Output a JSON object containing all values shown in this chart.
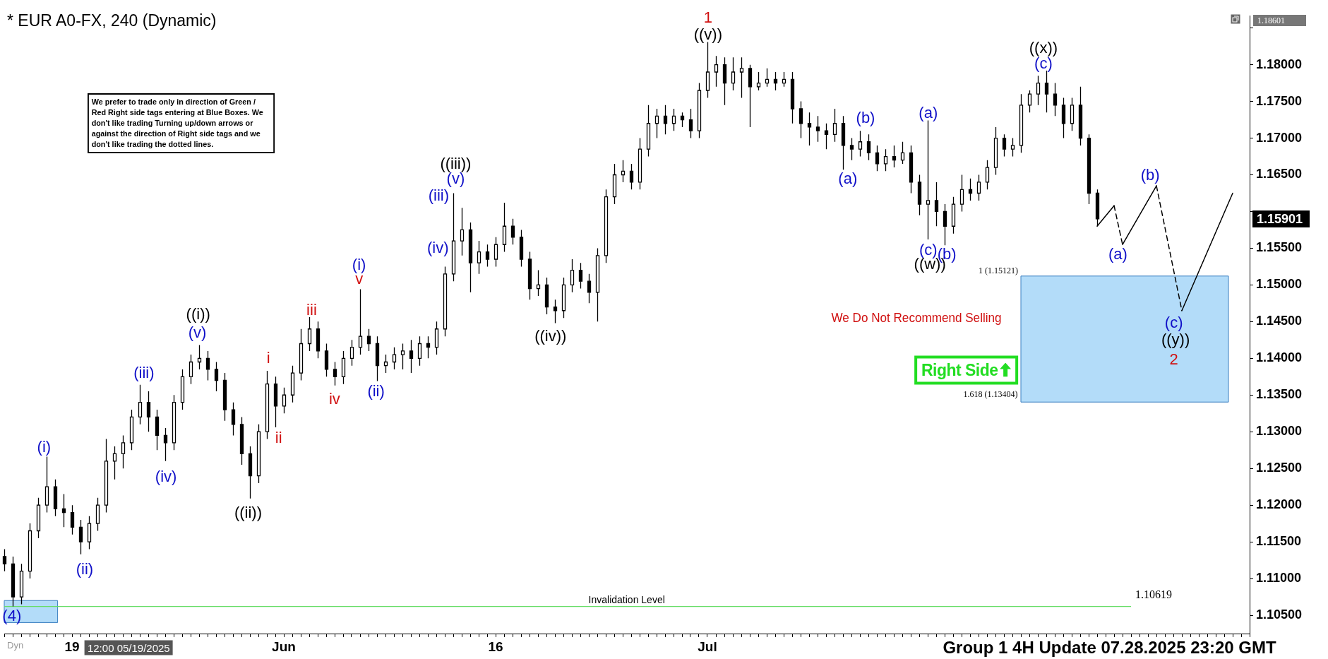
{
  "chart_data": {
    "type": "candlestick",
    "title": "* EUR A0-FX, 240 (Dynamic)",
    "color": "#000000",
    "categories": [
      null,
      null,
      null,
      null,
      null,
      null,
      null,
      null,
      "19",
      null,
      null,
      null,
      null,
      null,
      null,
      null,
      null,
      null,
      null,
      null,
      null,
      null,
      null,
      null,
      null,
      null,
      null,
      null,
      null,
      null,
      null,
      null,
      null,
      "Jun",
      null,
      null,
      null,
      null,
      null,
      null,
      null,
      null,
      null,
      null,
      null,
      null,
      null,
      null,
      null,
      null,
      null,
      null,
      null,
      null,
      null,
      null,
      null,
      null,
      "16",
      null,
      null,
      null,
      null,
      null,
      null,
      null,
      null,
      null,
      null,
      null,
      null,
      null,
      null,
      null,
      null,
      null,
      null,
      null,
      null,
      null,
      null,
      null,
      null,
      "Jul",
      null,
      null,
      null,
      null,
      null,
      null,
      null,
      null,
      null,
      null,
      null,
      null,
      null,
      null,
      null,
      null,
      null,
      null,
      null,
      null,
      null,
      null,
      null,
      null,
      null,
      null,
      null,
      null,
      null,
      null,
      null,
      null,
      null,
      null,
      null,
      null,
      null,
      null,
      null,
      null,
      null,
      null,
      null,
      null,
      null,
      null,
      null,
      null,
      null,
      null,
      null,
      null,
      null,
      null,
      null,
      null,
      null,
      null,
      null,
      null,
      null,
      null,
      null,
      null
    ],
    "ohlc": [
      [
        1.113,
        1.114,
        1.111,
        1.112
      ],
      [
        1.112,
        1.113,
        1.1062,
        1.1075
      ],
      [
        1.1075,
        1.112,
        1.1065,
        1.111
      ],
      [
        1.111,
        1.1175,
        1.11,
        1.1165
      ],
      [
        1.1165,
        1.121,
        1.1155,
        1.12
      ],
      [
        1.12,
        1.1266,
        1.119,
        1.1225
      ],
      [
        1.1225,
        1.1235,
        1.1185,
        1.1195
      ],
      [
        1.1195,
        1.1215,
        1.117,
        1.119
      ],
      [
        1.119,
        1.12,
        1.116,
        1.117
      ],
      [
        1.117,
        1.118,
        1.1133,
        1.115
      ],
      [
        1.115,
        1.1185,
        1.114,
        1.1175
      ],
      [
        1.1175,
        1.121,
        1.1165,
        1.12
      ],
      [
        1.12,
        1.129,
        1.119,
        1.126
      ],
      [
        1.126,
        1.128,
        1.1235,
        1.127
      ],
      [
        1.127,
        1.1295,
        1.125,
        1.1285
      ],
      [
        1.1285,
        1.133,
        1.1275,
        1.132
      ],
      [
        1.132,
        1.1364,
        1.131,
        1.134
      ],
      [
        1.134,
        1.1355,
        1.13,
        1.132
      ],
      [
        1.132,
        1.133,
        1.1275,
        1.1295
      ],
      [
        1.1295,
        1.1305,
        1.126,
        1.1285
      ],
      [
        1.1285,
        1.135,
        1.1275,
        1.134
      ],
      [
        1.134,
        1.1385,
        1.133,
        1.1375
      ],
      [
        1.1375,
        1.1405,
        1.1365,
        1.1395
      ],
      [
        1.1395,
        1.1418,
        1.1385,
        1.14
      ],
      [
        1.14,
        1.141,
        1.137,
        1.1385
      ],
      [
        1.1385,
        1.1395,
        1.1355,
        1.137
      ],
      [
        1.137,
        1.138,
        1.1315,
        1.133
      ],
      [
        1.133,
        1.134,
        1.1295,
        1.131
      ],
      [
        1.131,
        1.132,
        1.1255,
        1.127
      ],
      [
        1.127,
        1.128,
        1.1209,
        1.124
      ],
      [
        1.124,
        1.131,
        1.123,
        1.13
      ],
      [
        1.13,
        1.1383,
        1.129,
        1.1365
      ],
      [
        1.1365,
        1.1375,
        1.1306,
        1.1335
      ],
      [
        1.1335,
        1.136,
        1.1325,
        1.135
      ],
      [
        1.135,
        1.139,
        1.134,
        1.138
      ],
      [
        1.138,
        1.144,
        1.137,
        1.142
      ],
      [
        1.142,
        1.1456,
        1.141,
        1.144
      ],
      [
        1.144,
        1.145,
        1.14,
        1.141
      ],
      [
        1.141,
        1.142,
        1.1375,
        1.1385
      ],
      [
        1.1385,
        1.1395,
        1.1363,
        1.1375
      ],
      [
        1.1375,
        1.141,
        1.1365,
        1.14
      ],
      [
        1.14,
        1.1425,
        1.139,
        1.1415
      ],
      [
        1.1415,
        1.1494,
        1.1405,
        1.143
      ],
      [
        1.143,
        1.144,
        1.141,
        1.142
      ],
      [
        1.142,
        1.143,
        1.1369,
        1.139
      ],
      [
        1.139,
        1.1405,
        1.138,
        1.1395
      ],
      [
        1.1395,
        1.1415,
        1.1385,
        1.1405
      ],
      [
        1.1405,
        1.142,
        1.1385,
        1.141
      ],
      [
        1.141,
        1.1425,
        1.138,
        1.14
      ],
      [
        1.14,
        1.143,
        1.139,
        1.142
      ],
      [
        1.142,
        1.143,
        1.14,
        1.1415
      ],
      [
        1.1415,
        1.145,
        1.1405,
        1.144
      ],
      [
        1.144,
        1.1525,
        1.143,
        1.1515
      ],
      [
        1.1515,
        1.1625,
        1.1505,
        1.156
      ],
      [
        1.156,
        1.1605,
        1.154,
        1.1575
      ],
      [
        1.1575,
        1.1585,
        1.149,
        1.153
      ],
      [
        1.153,
        1.156,
        1.1515,
        1.1545
      ],
      [
        1.1545,
        1.1555,
        1.1525,
        1.1535
      ],
      [
        1.1535,
        1.1565,
        1.1525,
        1.1555
      ],
      [
        1.1555,
        1.1612,
        1.1545,
        1.158
      ],
      [
        1.158,
        1.159,
        1.1555,
        1.1565
      ],
      [
        1.1565,
        1.1575,
        1.1525,
        1.1535
      ],
      [
        1.1535,
        1.1545,
        1.148,
        1.1495
      ],
      [
        1.1495,
        1.152,
        1.1485,
        1.15
      ],
      [
        1.15,
        1.151,
        1.146,
        1.147
      ],
      [
        1.147,
        1.148,
        1.1448,
        1.1465
      ],
      [
        1.1465,
        1.151,
        1.1455,
        1.15
      ],
      [
        1.15,
        1.1535,
        1.149,
        1.152
      ],
      [
        1.152,
        1.153,
        1.1495,
        1.1505
      ],
      [
        1.1505,
        1.1515,
        1.1475,
        1.149
      ],
      [
        1.149,
        1.155,
        1.145,
        1.154
      ],
      [
        1.154,
        1.163,
        1.153,
        1.162
      ],
      [
        1.162,
        1.1665,
        1.161,
        1.165
      ],
      [
        1.165,
        1.167,
        1.164,
        1.1655
      ],
      [
        1.1655,
        1.1665,
        1.163,
        1.164
      ],
      [
        1.164,
        1.17,
        1.163,
        1.1685
      ],
      [
        1.1685,
        1.1745,
        1.1675,
        1.172
      ],
      [
        1.172,
        1.174,
        1.17,
        1.173
      ],
      [
        1.173,
        1.1745,
        1.1705,
        1.172
      ],
      [
        1.172,
        1.174,
        1.171,
        1.173
      ],
      [
        1.173,
        1.1735,
        1.1715,
        1.1725
      ],
      [
        1.1725,
        1.174,
        1.17,
        1.171
      ],
      [
        1.171,
        1.1775,
        1.17,
        1.1765
      ],
      [
        1.1765,
        1.1831,
        1.1755,
        1.179
      ],
      [
        1.179,
        1.1812,
        1.177,
        1.18
      ],
      [
        1.18,
        1.181,
        1.1745,
        1.1775
      ],
      [
        1.1775,
        1.181,
        1.1765,
        1.179
      ],
      [
        1.179,
        1.181,
        1.1755,
        1.1795
      ],
      [
        1.1795,
        1.18,
        1.1715,
        1.177
      ],
      [
        1.177,
        1.179,
        1.1765,
        1.1775
      ],
      [
        1.1775,
        1.1795,
        1.177,
        1.178
      ],
      [
        1.178,
        1.179,
        1.1765,
        1.1775
      ],
      [
        1.1775,
        1.179,
        1.177,
        1.178
      ],
      [
        1.178,
        1.179,
        1.172,
        1.174
      ],
      [
        1.174,
        1.175,
        1.17,
        1.172
      ],
      [
        1.172,
        1.1735,
        1.169,
        1.1715
      ],
      [
        1.1715,
        1.173,
        1.1695,
        1.171
      ],
      [
        1.171,
        1.172,
        1.1685,
        1.1705
      ],
      [
        1.1705,
        1.174,
        1.1695,
        1.172
      ],
      [
        1.172,
        1.173,
        1.1657,
        1.169
      ],
      [
        1.169,
        1.17,
        1.167,
        1.1685
      ],
      [
        1.1685,
        1.171,
        1.1675,
        1.1695
      ],
      [
        1.1695,
        1.1705,
        1.167,
        1.168
      ],
      [
        1.168,
        1.169,
        1.1655,
        1.1665
      ],
      [
        1.1665,
        1.1685,
        1.1655,
        1.1675
      ],
      [
        1.1675,
        1.169,
        1.166,
        1.167
      ],
      [
        1.167,
        1.1695,
        1.1665,
        1.168
      ],
      [
        1.168,
        1.169,
        1.1625,
        1.164
      ],
      [
        1.164,
        1.165,
        1.1595,
        1.161
      ],
      [
        1.161,
        1.1724,
        1.1562,
        1.1615
      ],
      [
        1.1615,
        1.164,
        1.158,
        1.16
      ],
      [
        1.16,
        1.161,
        1.1554,
        1.158
      ],
      [
        1.158,
        1.162,
        1.157,
        1.161
      ],
      [
        1.161,
        1.165,
        1.16,
        1.163
      ],
      [
        1.163,
        1.1645,
        1.1615,
        1.1625
      ],
      [
        1.1625,
        1.165,
        1.1615,
        1.164
      ],
      [
        1.164,
        1.167,
        1.163,
        1.166
      ],
      [
        1.166,
        1.1715,
        1.165,
        1.17
      ],
      [
        1.17,
        1.1705,
        1.1675,
        1.1685
      ],
      [
        1.1685,
        1.17,
        1.1675,
        1.169
      ],
      [
        1.169,
        1.176,
        1.168,
        1.1745
      ],
      [
        1.1745,
        1.1765,
        1.1735,
        1.176
      ],
      [
        1.176,
        1.1785,
        1.1745,
        1.1775
      ],
      [
        1.1775,
        1.1792,
        1.1735,
        1.176
      ],
      [
        1.176,
        1.1775,
        1.173,
        1.1745
      ],
      [
        1.1745,
        1.1755,
        1.17,
        1.172
      ],
      [
        1.172,
        1.1755,
        1.171,
        1.1745
      ],
      [
        1.1745,
        1.177,
        1.169,
        1.17
      ],
      [
        1.17,
        1.1705,
        1.161,
        1.1625
      ],
      [
        1.1625,
        1.163,
        1.158,
        1.15901
      ],
      null,
      null,
      null,
      null,
      null,
      null,
      null,
      null,
      null,
      null,
      null,
      null,
      null,
      null,
      null,
      null,
      null,
      null
    ],
    "series": [
      {
        "type": "line",
        "color": "#000000",
        "line_style": "solid",
        "values": [
          null,
          null,
          null,
          null,
          null,
          null,
          null,
          null,
          null,
          null,
          null,
          null,
          null,
          null,
          null,
          null,
          null,
          null,
          null,
          null,
          null,
          null,
          null,
          null,
          null,
          null,
          null,
          null,
          null,
          null,
          null,
          null,
          null,
          null,
          null,
          null,
          null,
          null,
          null,
          null,
          null,
          null,
          null,
          null,
          null,
          null,
          null,
          null,
          null,
          null,
          null,
          null,
          null,
          null,
          null,
          null,
          null,
          null,
          null,
          null,
          null,
          null,
          null,
          null,
          null,
          null,
          null,
          null,
          null,
          null,
          null,
          null,
          null,
          null,
          null,
          null,
          null,
          null,
          null,
          null,
          null,
          null,
          null,
          null,
          null,
          null,
          null,
          null,
          null,
          null,
          null,
          null,
          null,
          null,
          null,
          null,
          null,
          null,
          null,
          null,
          null,
          null,
          null,
          null,
          null,
          null,
          null,
          null,
          null,
          null,
          null,
          null,
          null,
          null,
          null,
          null,
          null,
          null,
          null,
          null,
          null,
          null,
          null,
          null,
          null,
          null,
          null,
          null,
          null,
          1.158,
          null,
          1.1608,
          null,
          null,
          null,
          null,
          null,
          null,
          null,
          null,
          null,
          null,
          null,
          null,
          null,
          null,
          null,
          null
        ]
      },
      {
        "type": "line",
        "color": "#000000",
        "line_style": "dashed",
        "values": [
          null,
          null,
          null,
          null,
          null,
          null,
          null,
          null,
          null,
          null,
          null,
          null,
          null,
          null,
          null,
          null,
          null,
          null,
          null,
          null,
          null,
          null,
          null,
          null,
          null,
          null,
          null,
          null,
          null,
          null,
          null,
          null,
          null,
          null,
          null,
          null,
          null,
          null,
          null,
          null,
          null,
          null,
          null,
          null,
          null,
          null,
          null,
          null,
          null,
          null,
          null,
          null,
          null,
          null,
          null,
          null,
          null,
          null,
          null,
          null,
          null,
          null,
          null,
          null,
          null,
          null,
          null,
          null,
          null,
          null,
          null,
          null,
          null,
          null,
          null,
          null,
          null,
          null,
          null,
          null,
          null,
          null,
          null,
          null,
          null,
          null,
          null,
          null,
          null,
          null,
          null,
          null,
          null,
          null,
          null,
          null,
          null,
          null,
          null,
          null,
          null,
          null,
          null,
          null,
          null,
          null,
          null,
          null,
          null,
          null,
          null,
          null,
          null,
          null,
          null,
          null,
          null,
          null,
          null,
          null,
          null,
          null,
          null,
          null,
          null,
          null,
          null,
          null,
          null,
          null,
          null,
          1.1608,
          1.1555,
          null,
          null,
          null,
          null,
          null,
          null,
          null,
          null,
          null,
          null,
          null,
          null,
          null,
          null,
          null
        ]
      },
      {
        "type": "line",
        "color": "#000000",
        "line_style": "solid",
        "values": [
          null,
          null,
          null,
          null,
          null,
          null,
          null,
          null,
          null,
          null,
          null,
          null,
          null,
          null,
          null,
          null,
          null,
          null,
          null,
          null,
          null,
          null,
          null,
          null,
          null,
          null,
          null,
          null,
          null,
          null,
          null,
          null,
          null,
          null,
          null,
          null,
          null,
          null,
          null,
          null,
          null,
          null,
          null,
          null,
          null,
          null,
          null,
          null,
          null,
          null,
          null,
          null,
          null,
          null,
          null,
          null,
          null,
          null,
          null,
          null,
          null,
          null,
          null,
          null,
          null,
          null,
          null,
          null,
          null,
          null,
          null,
          null,
          null,
          null,
          null,
          null,
          null,
          null,
          null,
          null,
          null,
          null,
          null,
          null,
          null,
          null,
          null,
          null,
          null,
          null,
          null,
          null,
          null,
          null,
          null,
          null,
          null,
          null,
          null,
          null,
          null,
          null,
          null,
          null,
          null,
          null,
          null,
          null,
          null,
          null,
          null,
          null,
          null,
          null,
          null,
          null,
          null,
          null,
          null,
          null,
          null,
          null,
          null,
          null,
          null,
          null,
          null,
          null,
          null,
          null,
          null,
          null,
          1.1555,
          null,
          null,
          null,
          1.1635,
          null,
          null,
          null,
          null,
          null,
          null,
          null,
          null,
          null,
          null,
          null
        ]
      },
      {
        "type": "line",
        "color": "#000000",
        "line_style": "dashed",
        "values": [
          null,
          null,
          null,
          null,
          null,
          null,
          null,
          null,
          null,
          null,
          null,
          null,
          null,
          null,
          null,
          null,
          null,
          null,
          null,
          null,
          null,
          null,
          null,
          null,
          null,
          null,
          null,
          null,
          null,
          null,
          null,
          null,
          null,
          null,
          null,
          null,
          null,
          null,
          null,
          null,
          null,
          null,
          null,
          null,
          null,
          null,
          null,
          null,
          null,
          null,
          null,
          null,
          null,
          null,
          null,
          null,
          null,
          null,
          null,
          null,
          null,
          null,
          null,
          null,
          null,
          null,
          null,
          null,
          null,
          null,
          null,
          null,
          null,
          null,
          null,
          null,
          null,
          null,
          null,
          null,
          null,
          null,
          null,
          null,
          null,
          null,
          null,
          null,
          null,
          null,
          null,
          null,
          null,
          null,
          null,
          null,
          null,
          null,
          null,
          null,
          null,
          null,
          null,
          null,
          null,
          null,
          null,
          null,
          null,
          null,
          null,
          null,
          null,
          null,
          null,
          null,
          null,
          null,
          null,
          null,
          null,
          null,
          null,
          null,
          null,
          null,
          null,
          null,
          null,
          null,
          null,
          null,
          null,
          null,
          null,
          null,
          1.1635,
          null,
          null,
          1.1465,
          null,
          null,
          null,
          null,
          null,
          null,
          null,
          null
        ]
      },
      {
        "type": "line",
        "color": "#000000",
        "line_style": "solid",
        "values": [
          null,
          null,
          null,
          null,
          null,
          null,
          null,
          null,
          null,
          null,
          null,
          null,
          null,
          null,
          null,
          null,
          null,
          null,
          null,
          null,
          null,
          null,
          null,
          null,
          null,
          null,
          null,
          null,
          null,
          null,
          null,
          null,
          null,
          null,
          null,
          null,
          null,
          null,
          null,
          null,
          null,
          null,
          null,
          null,
          null,
          null,
          null,
          null,
          null,
          null,
          null,
          null,
          null,
          null,
          null,
          null,
          null,
          null,
          null,
          null,
          null,
          null,
          null,
          null,
          null,
          null,
          null,
          null,
          null,
          null,
          null,
          null,
          null,
          null,
          null,
          null,
          null,
          null,
          null,
          null,
          null,
          null,
          null,
          null,
          null,
          null,
          null,
          null,
          null,
          null,
          null,
          null,
          null,
          null,
          null,
          null,
          null,
          null,
          null,
          null,
          null,
          null,
          null,
          null,
          null,
          null,
          null,
          null,
          null,
          null,
          null,
          null,
          null,
          null,
          null,
          null,
          null,
          null,
          null,
          null,
          null,
          null,
          null,
          null,
          null,
          null,
          null,
          null,
          null,
          null,
          null,
          null,
          null,
          null,
          null,
          null,
          null,
          null,
          null,
          1.1465,
          null,
          null,
          null,
          null,
          null,
          1.1625,
          null,
          null
        ]
      }
    ],
    "ylim": [
      1.1025,
      1.1867
    ],
    "yticks": [
      {
        "value": 1.105,
        "label": "1.10500"
      },
      {
        "value": 1.11,
        "label": "1.11000"
      },
      {
        "value": 1.115,
        "label": "1.11500"
      },
      {
        "value": 1.12,
        "label": "1.12000"
      },
      {
        "value": 1.125,
        "label": "1.12500"
      },
      {
        "value": 1.13,
        "label": "1.13000"
      },
      {
        "value": 1.135,
        "label": "1.13500"
      },
      {
        "value": 1.14,
        "label": "1.14000"
      },
      {
        "value": 1.145,
        "label": "1.14500"
      },
      {
        "value": 1.15,
        "label": "1.15000"
      },
      {
        "value": 1.155,
        "label": "1.15500"
      },
      {
        "value": 1.16,
        "label": null
      },
      {
        "value": 1.165,
        "label": "1.16500"
      },
      {
        "value": 1.17,
        "label": "1.17000"
      },
      {
        "value": 1.175,
        "label": "1.17500"
      },
      {
        "value": 1.18,
        "label": "1.18000"
      },
      {
        "value": 1.185,
        "label": null
      }
    ],
    "ref_lines": [
      {
        "axis": "y",
        "value": 1.10619,
        "label": "Invalidation Level",
        "color": "#66dd66"
      }
    ],
    "bands": [
      {
        "axis": "y",
        "from": 1.13404,
        "to": 1.15121,
        "label": "1 (1.15121)",
        "color": "#b3dcf9"
      },
      {
        "axis": "y",
        "from": 1.104,
        "to": 1.107,
        "color": "#b3dcf9"
      }
    ],
    "annotations": [
      "(4)",
      "(i)",
      "(ii)",
      "(iii)",
      "(iv)",
      "(v)",
      "((i))",
      "((ii))",
      "i",
      "ii",
      "iii",
      "iv",
      "v",
      "(i)",
      "(ii)",
      "((iii))",
      "(v)",
      "(iii)",
      "(iv)",
      "((iv))",
      "1",
      "((v))",
      "(a)",
      "(b)",
      "(a)",
      "(c)",
      "(b)",
      "((w))",
      "((x))",
      "(c)",
      "(a)",
      "(b)",
      "(c)",
      "((y))",
      "2",
      "We prefer to trade only in direction of Green / Red Right side tags entering at Blue Boxes. We don't like trading Turning up/down arrows or against the direction of Right side tags and we don't like trading the dotted lines.",
      "We Do Not Recommend Selling",
      "Right Side",
      "1.10619",
      "1.618 (1.13404)",
      "1.15901",
      "1.18601",
      "Group 1 4H  Update 07.28.2025 23:20 GMT",
      "12:00 05/19/2025",
      "Dyn"
    ]
  }
}
